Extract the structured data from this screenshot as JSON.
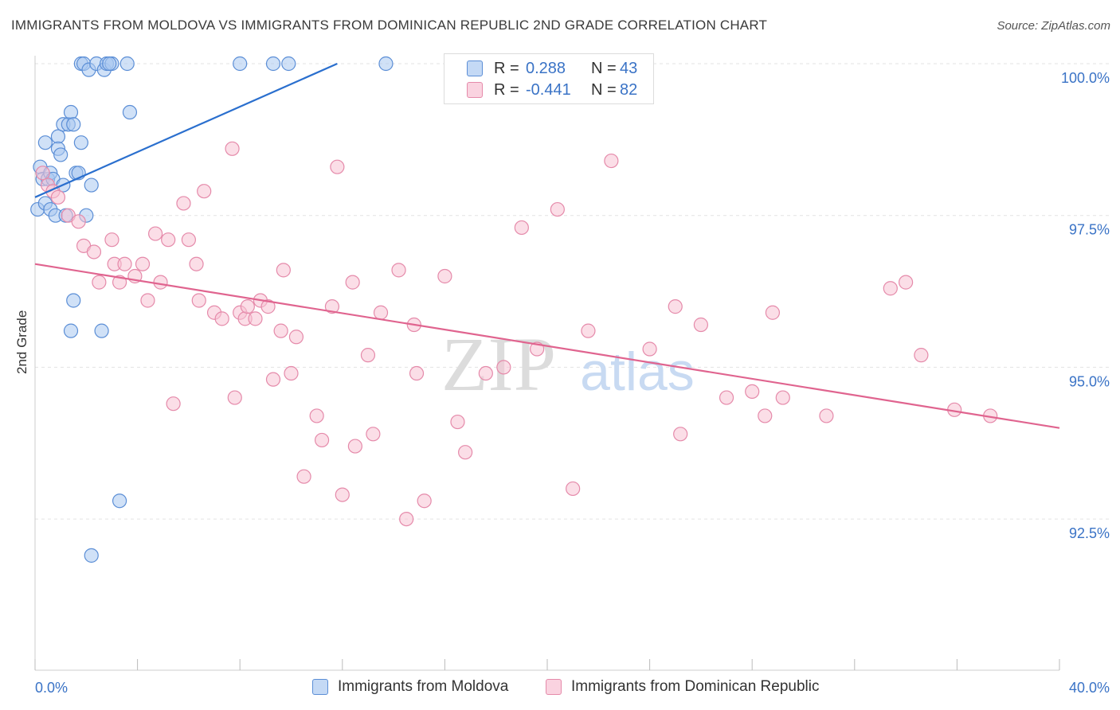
{
  "header": {
    "title": "IMMIGRANTS FROM MOLDOVA VS IMMIGRANTS FROM DOMINICAN REPUBLIC 2ND GRADE CORRELATION CHART",
    "source": "Source: ZipAtlas.com"
  },
  "legend": {
    "rows": [
      {
        "r_label": "R =",
        "r_value": "0.288",
        "n_label": "N =",
        "n_value": "43"
      },
      {
        "r_label": "R =",
        "r_value": "-0.441",
        "n_label": "N =",
        "n_value": "82"
      }
    ]
  },
  "watermark": {
    "zip": "ZIP",
    "atlas": "atlas"
  },
  "colors": {
    "moldova_fill": "#aac8f0",
    "moldova_stroke": "#5b8ed6",
    "moldova_line": "#2a6fce",
    "dominican_fill": "#f7c2d3",
    "dominican_stroke": "#e58aaa",
    "dominican_line": "#e0648f",
    "tick_label": "#3a73c6",
    "grid": "#e3e3e3"
  },
  "chart_data": {
    "type": "scatter",
    "title": "IMMIGRANTS FROM MOLDOVA VS IMMIGRANTS FROM DOMINICAN REPUBLIC 2ND GRADE CORRELATION CHART",
    "xlabel": "",
    "ylabel": "2nd Grade",
    "xlim": [
      0,
      40
    ],
    "ylim": [
      90.0,
      100.2
    ],
    "x_tick_labels": [
      "0.0%",
      "40.0%"
    ],
    "y_ticks": [
      92.5,
      95.0,
      97.5,
      100.0
    ],
    "y_tick_labels": [
      "92.5%",
      "95.0%",
      "97.5%",
      "100.0%"
    ],
    "grid": true,
    "legend_position": "top-center",
    "series": [
      {
        "name": "Immigrants from Moldova",
        "R": 0.288,
        "N": 43,
        "trend": {
          "x": [
            0.0,
            11.8
          ],
          "y": [
            97.8,
            100.0
          ]
        },
        "points": [
          [
            0.1,
            97.6
          ],
          [
            0.2,
            98.3
          ],
          [
            0.3,
            98.1
          ],
          [
            0.4,
            98.7
          ],
          [
            0.4,
            97.7
          ],
          [
            0.5,
            98.1
          ],
          [
            0.6,
            97.6
          ],
          [
            0.6,
            98.2
          ],
          [
            0.7,
            98.1
          ],
          [
            0.8,
            97.5
          ],
          [
            0.9,
            98.8
          ],
          [
            0.9,
            98.6
          ],
          [
            1.0,
            98.5
          ],
          [
            1.1,
            98.0
          ],
          [
            1.1,
            99.0
          ],
          [
            1.2,
            97.5
          ],
          [
            1.3,
            99.0
          ],
          [
            1.4,
            99.2
          ],
          [
            1.5,
            99.0
          ],
          [
            1.6,
            98.2
          ],
          [
            1.7,
            98.2
          ],
          [
            1.8,
            98.7
          ],
          [
            2.0,
            97.5
          ],
          [
            2.2,
            98.0
          ],
          [
            1.5,
            96.1
          ],
          [
            1.4,
            95.6
          ],
          [
            2.6,
            95.6
          ],
          [
            1.8,
            100.0
          ],
          [
            1.9,
            100.0
          ],
          [
            2.1,
            99.9
          ],
          [
            2.4,
            100.0
          ],
          [
            2.7,
            99.9
          ],
          [
            2.8,
            100.0
          ],
          [
            3.0,
            100.0
          ],
          [
            3.6,
            100.0
          ],
          [
            3.7,
            99.2
          ],
          [
            8.0,
            100.0
          ],
          [
            9.3,
            100.0
          ],
          [
            9.9,
            100.0
          ],
          [
            13.7,
            100.0
          ],
          [
            3.3,
            92.8
          ],
          [
            2.2,
            91.9
          ],
          [
            2.9,
            100.0
          ]
        ]
      },
      {
        "name": "Immigrants from Dominican Republic",
        "R": -0.441,
        "N": 82,
        "trend": {
          "x": [
            0.0,
            40.0
          ],
          "y": [
            96.7,
            94.0
          ]
        },
        "points": [
          [
            0.3,
            98.2
          ],
          [
            0.5,
            98.0
          ],
          [
            0.7,
            97.9
          ],
          [
            0.9,
            97.8
          ],
          [
            1.3,
            97.5
          ],
          [
            1.7,
            97.4
          ],
          [
            1.9,
            97.0
          ],
          [
            2.3,
            96.9
          ],
          [
            2.5,
            96.4
          ],
          [
            3.0,
            97.1
          ],
          [
            3.1,
            96.7
          ],
          [
            3.3,
            96.4
          ],
          [
            3.5,
            96.7
          ],
          [
            3.9,
            96.5
          ],
          [
            4.2,
            96.7
          ],
          [
            4.4,
            96.1
          ],
          [
            4.7,
            97.2
          ],
          [
            4.9,
            96.4
          ],
          [
            5.2,
            97.1
          ],
          [
            5.4,
            94.4
          ],
          [
            5.8,
            97.7
          ],
          [
            6.0,
            97.1
          ],
          [
            6.3,
            96.7
          ],
          [
            6.4,
            96.1
          ],
          [
            6.6,
            97.9
          ],
          [
            7.0,
            95.9
          ],
          [
            7.3,
            95.8
          ],
          [
            7.7,
            98.6
          ],
          [
            7.8,
            94.5
          ],
          [
            8.0,
            95.9
          ],
          [
            8.2,
            95.8
          ],
          [
            8.3,
            96.0
          ],
          [
            8.6,
            95.8
          ],
          [
            8.8,
            96.1
          ],
          [
            9.1,
            96.0
          ],
          [
            9.3,
            94.8
          ],
          [
            9.6,
            95.6
          ],
          [
            9.7,
            96.6
          ],
          [
            10.0,
            94.9
          ],
          [
            10.2,
            95.5
          ],
          [
            10.5,
            93.2
          ],
          [
            11.0,
            94.2
          ],
          [
            11.2,
            93.8
          ],
          [
            11.6,
            96.0
          ],
          [
            11.8,
            98.3
          ],
          [
            12.0,
            92.9
          ],
          [
            12.4,
            96.4
          ],
          [
            12.5,
            93.7
          ],
          [
            13.0,
            95.2
          ],
          [
            13.2,
            93.9
          ],
          [
            13.5,
            95.9
          ],
          [
            14.2,
            96.6
          ],
          [
            14.5,
            92.5
          ],
          [
            14.8,
            95.7
          ],
          [
            14.9,
            94.9
          ],
          [
            15.2,
            92.8
          ],
          [
            16.0,
            96.5
          ],
          [
            16.5,
            94.1
          ],
          [
            16.8,
            93.6
          ],
          [
            17.6,
            94.9
          ],
          [
            18.3,
            95.0
          ],
          [
            19.0,
            97.3
          ],
          [
            19.6,
            95.3
          ],
          [
            20.4,
            97.6
          ],
          [
            21.0,
            93.0
          ],
          [
            21.6,
            95.6
          ],
          [
            22.5,
            98.4
          ],
          [
            24.0,
            95.3
          ],
          [
            25.0,
            96.0
          ],
          [
            25.2,
            93.9
          ],
          [
            26.0,
            95.7
          ],
          [
            27.0,
            94.5
          ],
          [
            28.0,
            94.6
          ],
          [
            28.5,
            94.2
          ],
          [
            28.8,
            95.9
          ],
          [
            29.2,
            94.5
          ],
          [
            30.9,
            94.2
          ],
          [
            33.4,
            96.3
          ],
          [
            34.0,
            96.4
          ],
          [
            34.6,
            95.2
          ],
          [
            35.9,
            94.3
          ],
          [
            37.3,
            94.2
          ]
        ]
      }
    ]
  },
  "bottom_legend": {
    "items": [
      {
        "label": "Immigrants from Moldova"
      },
      {
        "label": "Immigrants from Dominican Republic"
      }
    ]
  }
}
